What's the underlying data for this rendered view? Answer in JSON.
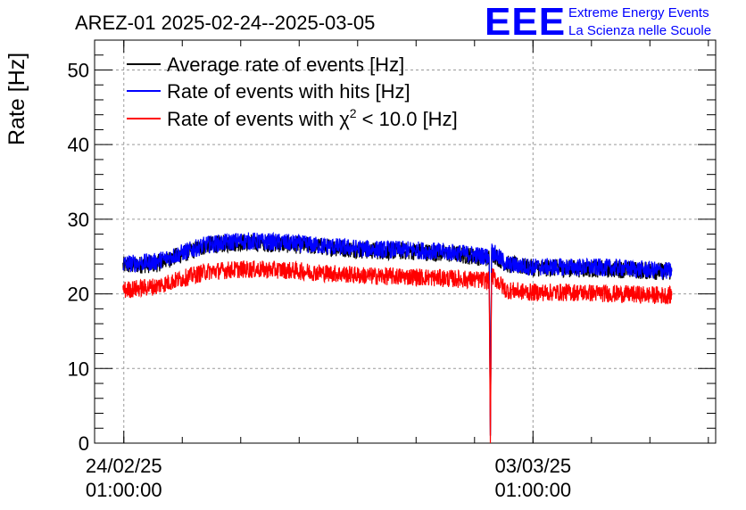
{
  "chart_data": {
    "type": "line",
    "title": "AREZ-01 2025-02-24--2025-03-05",
    "ylabel": "Rate [Hz]",
    "xlabel": "",
    "ylim": [
      0,
      54
    ],
    "y_ticks": [
      0,
      10,
      20,
      30,
      40,
      50
    ],
    "x_range": [
      "2025-02-23 13:00",
      "2025-03-06 04:00"
    ],
    "x_tick_labels": [
      {
        "date": "24/02/25",
        "time": "01:00:00",
        "at": "2025-02-24 01:00"
      },
      {
        "date": "03/03/25",
        "time": "01:00:00",
        "at": "2025-03-03 01:00"
      }
    ],
    "grid": true,
    "legend_placement": "top-left",
    "series": [
      {
        "name": "Average rate of events [Hz]",
        "color": "#000000",
        "x": [
          "2025-02-24 00:40",
          "2025-02-24 14:00",
          "2025-02-25 11:00",
          "2025-02-26 01:00",
          "2025-02-26 18:00",
          "2025-02-27 12:00",
          "2025-02-28 06:00",
          "2025-03-01 00:00",
          "2025-03-01 18:00",
          "2025-03-02 07:00",
          "2025-03-02 07:30",
          "2025-03-02 08:00",
          "2025-03-02 14:00",
          "2025-03-03 00:00",
          "2025-03-03 18:00",
          "2025-03-04 12:00",
          "2025-03-05 06:00",
          "2025-03-05 10:00"
        ],
        "y": [
          23.8,
          24.0,
          26.5,
          26.9,
          26.7,
          26.3,
          25.8,
          25.7,
          25.3,
          24.8,
          1.0,
          25.5,
          24.0,
          23.5,
          23.4,
          23.3,
          23.0,
          23.0
        ]
      },
      {
        "name": "Rate of events with hits [Hz]",
        "color": "#0000ff",
        "x": [
          "2025-02-24 00:40",
          "2025-02-24 14:00",
          "2025-02-25 11:00",
          "2025-02-26 01:00",
          "2025-02-26 18:00",
          "2025-02-27 12:00",
          "2025-02-28 06:00",
          "2025-03-01 00:00",
          "2025-03-01 18:00",
          "2025-03-02 07:00",
          "2025-03-02 07:30",
          "2025-03-02 08:00",
          "2025-03-02 14:00",
          "2025-03-03 00:00",
          "2025-03-03 18:00",
          "2025-03-04 12:00",
          "2025-03-05 06:00",
          "2025-03-05 10:00"
        ],
        "y": [
          24.0,
          24.3,
          26.6,
          27.1,
          26.9,
          26.4,
          26.0,
          25.9,
          25.5,
          25.0,
          1.0,
          25.8,
          24.0,
          23.6,
          23.6,
          23.5,
          23.1,
          23.1
        ]
      },
      {
        "name": "Rate of events with χ² < 10.0 [Hz]",
        "color": "#ff0000",
        "x": [
          "2025-02-24 00:40",
          "2025-02-24 14:00",
          "2025-02-25 11:00",
          "2025-02-26 01:00",
          "2025-02-26 18:00",
          "2025-02-27 12:00",
          "2025-02-28 06:00",
          "2025-03-01 00:00",
          "2025-03-01 18:00",
          "2025-03-02 07:00",
          "2025-03-02 07:30",
          "2025-03-02 08:00",
          "2025-03-02 14:00",
          "2025-03-03 00:00",
          "2025-03-03 18:00",
          "2025-03-04 12:00",
          "2025-03-05 06:00",
          "2025-03-05 10:00"
        ],
        "y": [
          20.5,
          21.0,
          23.0,
          23.3,
          23.2,
          22.8,
          22.4,
          22.3,
          22.0,
          21.8,
          0.0,
          22.5,
          20.5,
          20.2,
          20.2,
          20.0,
          19.8,
          19.8
        ]
      }
    ]
  },
  "legend": {
    "avg": "Average rate of events [Hz]",
    "hits": "Rate of events with hits [Hz]",
    "chi_prefix": "Rate of events with χ",
    "chi_sup": "2",
    "chi_suffix": " < 10.0 [Hz]"
  },
  "logo": {
    "letters": "EEE",
    "line1": "Extreme Energy Events",
    "line2": "La Scienza nelle Scuole",
    "color": "#0000ff"
  }
}
